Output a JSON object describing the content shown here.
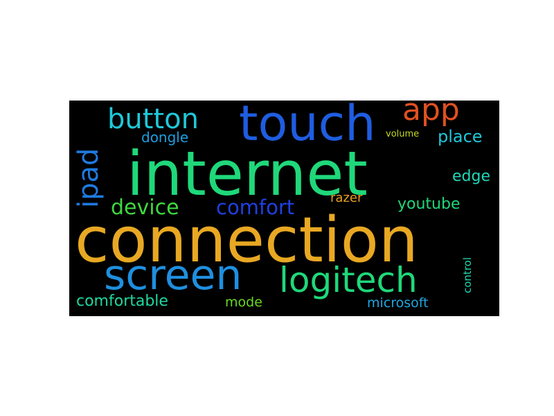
{
  "words": {
    "internet": {
      "text": "internet",
      "color": "#1fd87a"
    },
    "connection": {
      "text": "connection",
      "color": "#e8a823"
    },
    "touch": {
      "text": "touch",
      "color": "#1f5de0"
    },
    "screen": {
      "text": "screen",
      "color": "#1f8fe0"
    },
    "logitech": {
      "text": "logitech",
      "color": "#1fd87a"
    },
    "button": {
      "text": "button",
      "color": "#1fc8d8"
    },
    "app": {
      "text": "app",
      "color": "#e05020"
    },
    "ipad": {
      "text": "ipad",
      "color": "#1f7ae0"
    },
    "device": {
      "text": "device",
      "color": "#3fd840"
    },
    "comfort": {
      "text": "comfort",
      "color": "#1f40e0"
    },
    "dongle": {
      "text": "dongle",
      "color": "#1f9fe0"
    },
    "place": {
      "text": "place",
      "color": "#1fc8d8"
    },
    "edge": {
      "text": "edge",
      "color": "#1fd8b8"
    },
    "youtube": {
      "text": "youtube",
      "color": "#1fd87a"
    },
    "razer": {
      "text": "razer",
      "color": "#e8a020"
    },
    "volume": {
      "text": "volume",
      "color": "#c8d820"
    },
    "comfortable": {
      "text": "comfortable",
      "color": "#1fd8a0"
    },
    "mode": {
      "text": "mode",
      "color": "#6ad820"
    },
    "microsoft": {
      "text": "microsoft",
      "color": "#1fa8e0"
    },
    "control": {
      "text": "control",
      "color": "#1fd8b0"
    }
  }
}
